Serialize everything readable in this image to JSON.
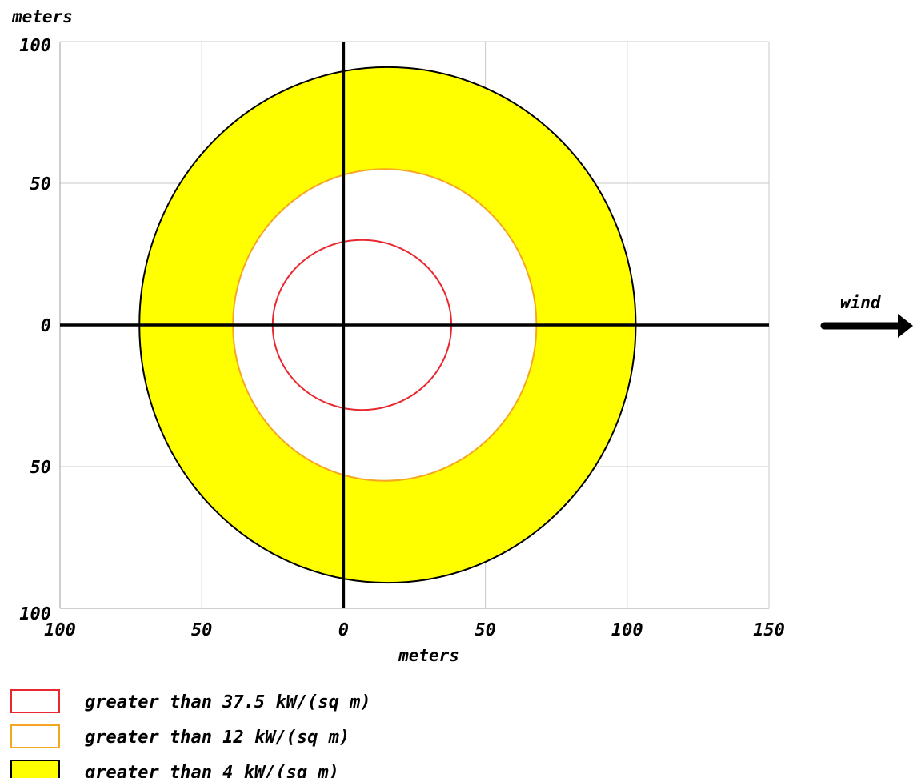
{
  "chart_data": {
    "type": "area",
    "title": "",
    "xlabel": "meters",
    "ylabel": "meters",
    "xlim": [
      -100,
      150
    ],
    "ylim": [
      -100,
      100
    ],
    "x_ticks": [
      {
        "value": -100,
        "label": "100"
      },
      {
        "value": -50,
        "label": "50"
      },
      {
        "value": 0,
        "label": "0"
      },
      {
        "value": 50,
        "label": "50"
      },
      {
        "value": 100,
        "label": "100"
      },
      {
        "value": 150,
        "label": "150"
      }
    ],
    "y_ticks": [
      {
        "value": 100,
        "label": "100"
      },
      {
        "value": 50,
        "label": "50"
      },
      {
        "value": 0,
        "label": "0"
      },
      {
        "value": -50,
        "label": "50"
      },
      {
        "value": -100,
        "label": "100"
      }
    ],
    "grid": true,
    "series": [
      {
        "name": "greater than 4 kW/(sq m)",
        "color": "#ffff00",
        "stroke": "#000000",
        "filled": true,
        "bounds": {
          "x_min": -72,
          "x_max": 103,
          "y_min": -91,
          "y_max": 91
        }
      },
      {
        "name": "greater than 12 kW/(sq m)",
        "color": "#ffffff",
        "stroke": "#f5a623",
        "filled": true,
        "bounds": {
          "x_min": -39,
          "x_max": 68,
          "y_min": -55,
          "y_max": 55
        }
      },
      {
        "name": "greater than 37.5 kW/(sq m)",
        "color": "#ffffff",
        "stroke": "#e8282e",
        "filled": false,
        "bounds": {
          "x_min": -25,
          "x_max": 38,
          "y_min": -30,
          "y_max": 30
        }
      }
    ],
    "legend": {
      "placement": "bottom-left",
      "items": [
        {
          "label": "greater than 37.5 kW/(sq m)",
          "stroke": "#e8282e",
          "fill": "#ffffff"
        },
        {
          "label": "greater than 12 kW/(sq m)",
          "stroke": "#f5a623",
          "fill": "#ffffff"
        },
        {
          "label": "greater than 4 kW/(sq m)",
          "stroke": "#000000",
          "fill": "#ffff00"
        }
      ]
    },
    "annotations": [
      {
        "text": "wind",
        "icon": "arrow-right-icon",
        "placement": "right"
      }
    ]
  }
}
